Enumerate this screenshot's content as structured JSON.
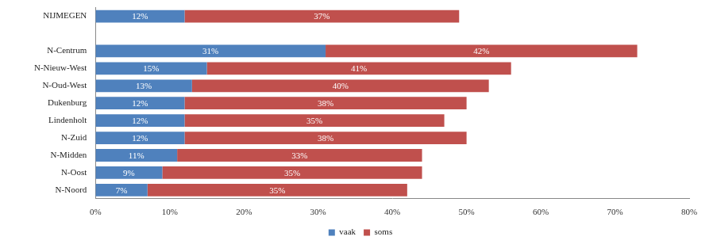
{
  "chart_data": {
    "type": "bar",
    "orientation": "horizontal",
    "stacked": true,
    "data_labels": true,
    "grid": false,
    "legend": "bottom",
    "categories": [
      "NIJMEGEN",
      null,
      "N-Centrum",
      "N-Nieuw-West",
      "N-Oud-West",
      "Dukenburg",
      "Lindenholt",
      "N-Zuid",
      "N-Midden",
      "N-Oost",
      "N-Noord"
    ],
    "series": [
      {
        "name": "vaak",
        "color": "#4f81bd",
        "values": [
          12,
          null,
          31,
          15,
          13,
          12,
          12,
          12,
          11,
          9,
          7
        ],
        "value_labels": [
          "12%",
          null,
          "31%",
          "15%",
          "13%",
          "12%",
          "12%",
          "12%",
          "11%",
          "9%",
          "7%"
        ]
      },
      {
        "name": "soms",
        "color": "#c0504d",
        "values": [
          37,
          null,
          42,
          41,
          40,
          38,
          35,
          38,
          33,
          35,
          35
        ],
        "value_labels": [
          "37%",
          null,
          "42%",
          "41%",
          "40%",
          "38%",
          "35%",
          "38%",
          "33%",
          "35%",
          "35%"
        ]
      }
    ],
    "xlim": [
      0,
      80
    ],
    "xticks": [
      {
        "value": 0,
        "label": "0%"
      },
      {
        "value": 10,
        "label": "10%"
      },
      {
        "value": 20,
        "label": "20%"
      },
      {
        "value": 30,
        "label": "30%"
      },
      {
        "value": 40,
        "label": "40%"
      },
      {
        "value": 50,
        "label": "50%"
      },
      {
        "value": 60,
        "label": "60%"
      },
      {
        "value": 70,
        "label": "70%"
      },
      {
        "value": 80,
        "label": "80%"
      }
    ]
  }
}
